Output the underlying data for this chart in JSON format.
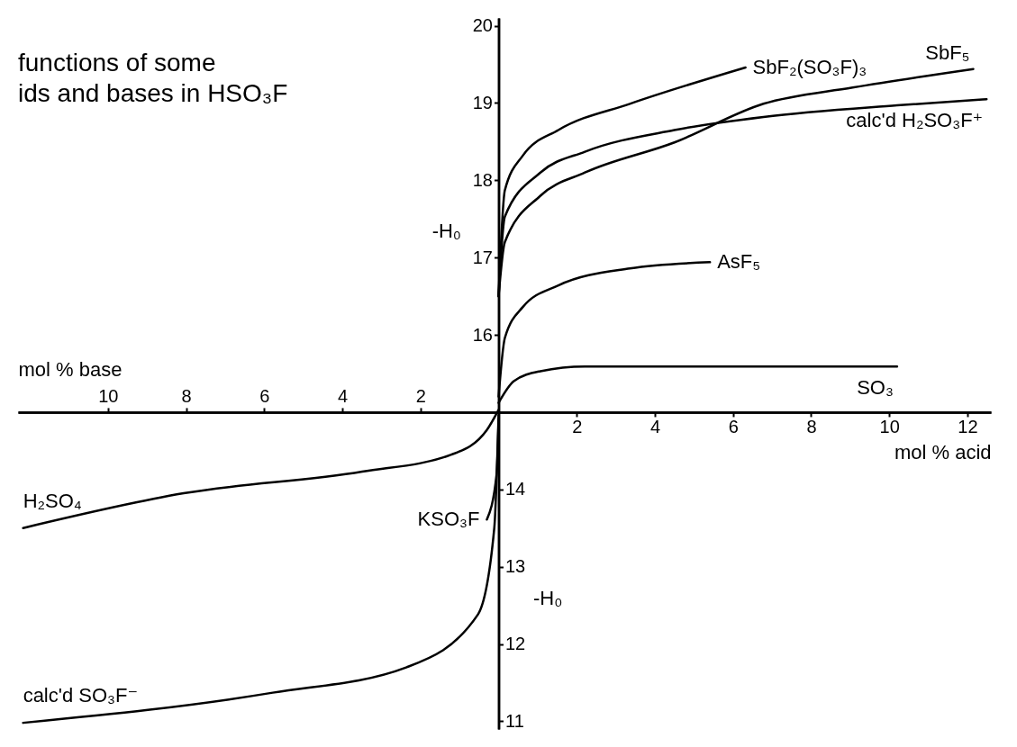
{
  "chart_data": {
    "type": "line",
    "title": "functions of some\nids and bases in HSO₃F",
    "xlabel": "mol % acid",
    "x2label": "mol % base",
    "ylabel": "-H₀",
    "y2label": "-H₀",
    "xlim": [
      -12.3,
      12.6
    ],
    "x2lim": [
      -12.3,
      12.6
    ],
    "ylim": [
      10.9,
      20.1
    ],
    "y2lim": [
      10.9,
      20.1
    ],
    "xticks": [
      2,
      4,
      6,
      8,
      10,
      12
    ],
    "x2ticks": [
      {
        "value": -10,
        "label": "10"
      },
      {
        "value": -8,
        "label": "8"
      },
      {
        "value": -6,
        "label": "6"
      },
      {
        "value": -4,
        "label": "4"
      },
      {
        "value": -2,
        "label": "2"
      }
    ],
    "yticks": [
      16,
      17,
      18,
      19,
      20
    ],
    "y2ticks": [
      11,
      12,
      13,
      14
    ],
    "line_style": "solid",
    "series": [
      {
        "name": "SbF₂(SO₃F)₃",
        "color": "#000000",
        "x": [
          0,
          0.16,
          0.62,
          1.53,
          3.36,
          6.32
        ],
        "values": [
          16.5,
          17.87,
          18.32,
          18.65,
          18.99,
          19.46
        ]
      },
      {
        "name": "SbF₅",
        "color": "#000000",
        "x": [
          0,
          0.16,
          1.07,
          2.21,
          4.5,
          6.78,
          9.06,
          12.15
        ],
        "values": [
          16.5,
          17.2,
          17.8,
          18.1,
          18.49,
          18.99,
          19.2,
          19.44
        ]
      },
      {
        "name": "calc'd H₂SO₃F⁺",
        "color": "#000000",
        "x": [
          0,
          0.16,
          1.07,
          2.21,
          4.5,
          6.78,
          10.2,
          12.49
        ],
        "values": [
          16.5,
          17.53,
          18.1,
          18.37,
          18.65,
          18.82,
          18.97,
          19.05
        ]
      },
      {
        "name": "AsF₅",
        "color": "#000000",
        "x": [
          0,
          0.16,
          0.62,
          1.53,
          3.36,
          5.41
        ],
        "values": [
          15.2,
          15.96,
          16.36,
          16.64,
          16.86,
          16.94
        ]
      },
      {
        "name": "SO₃",
        "color": "#000000",
        "x": [
          0,
          0.39,
          1.07,
          2.21,
          10.2
        ],
        "values": [
          15.12,
          15.4,
          15.53,
          15.59,
          15.59
        ]
      },
      {
        "name": "H₂SO₄",
        "color": "#000000",
        "x": [
          0,
          -0.3,
          -1.21,
          -3.49,
          -8.06,
          -12.17
        ],
        "values": [
          15.03,
          14.77,
          14.45,
          14.23,
          13.95,
          13.5
        ]
      },
      {
        "name": "KSO₃F",
        "color": "#000000",
        "x": [
          0,
          -0.05,
          -0.3
        ],
        "values": [
          14.9,
          14.2,
          13.61
        ]
      },
      {
        "name": "calc'd SO₃F⁻",
        "color": "#000000",
        "x": [
          0,
          -0.11,
          -0.53,
          -2.35,
          -5.78,
          -12.17
        ],
        "values": [
          14.96,
          13.5,
          12.38,
          11.7,
          11.37,
          10.98
        ]
      }
    ]
  }
}
